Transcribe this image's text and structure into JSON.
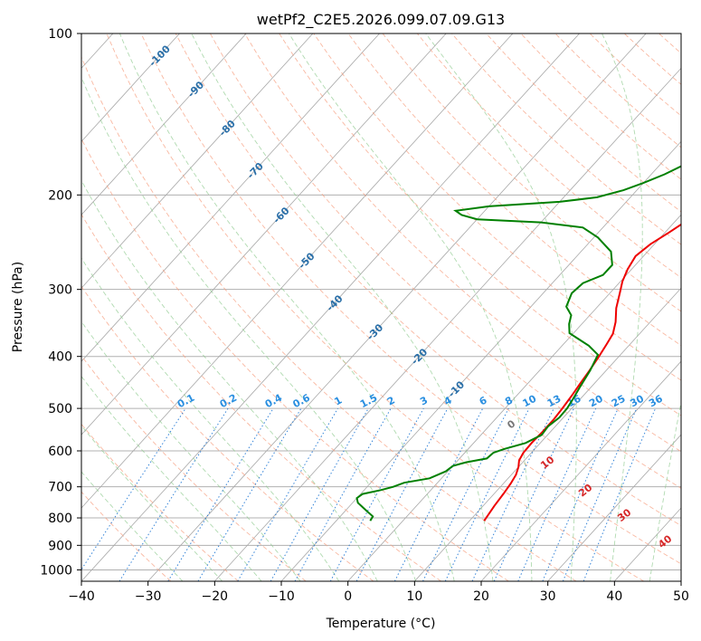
{
  "chart_data": {
    "type": "line",
    "title": "wetPf2_C2E5.2026.099.07.09.G13",
    "xlabel": "Temperature (°C)",
    "ylabel": "Pressure (hPa)",
    "xlim": [
      -40,
      50
    ],
    "ylim": [
      1050,
      100
    ],
    "y_scale": "log",
    "grid": true,
    "x_ticks": [
      -40,
      -30,
      -20,
      -10,
      0,
      10,
      20,
      30,
      40,
      50
    ],
    "x_tick_labels": [
      "−40",
      "−30",
      "−20",
      "−10",
      "0",
      "10",
      "20",
      "30",
      "40",
      "50"
    ],
    "y_ticks": [
      100,
      200,
      300,
      400,
      500,
      600,
      700,
      800,
      900,
      1000
    ],
    "y_tick_labels": [
      "100",
      "200",
      "300",
      "400",
      "500",
      "600",
      "700",
      "800",
      "900",
      "1000"
    ],
    "series": [
      {
        "color": "#ee0000",
        "points": [
          [
            12.2,
            810
          ],
          [
            11.7,
            760
          ],
          [
            11.4,
            720
          ],
          [
            11.1,
            690
          ],
          [
            10.7,
            665
          ],
          [
            10.0,
            643
          ],
          [
            9.2,
            625
          ],
          [
            8.8,
            605
          ],
          [
            8.7,
            580
          ],
          [
            8.8,
            555
          ],
          [
            8.8,
            525
          ],
          [
            8.6,
            500
          ],
          [
            8.3,
            475
          ],
          [
            7.9,
            450
          ],
          [
            7.5,
            425
          ],
          [
            7.0,
            400
          ],
          [
            6.5,
            380
          ],
          [
            6.0,
            363
          ],
          [
            4.8,
            345
          ],
          [
            3.0,
            325
          ],
          [
            1.5,
            305
          ],
          [
            0.3,
            290
          ],
          [
            -0.6,
            275
          ],
          [
            -1.2,
            260
          ],
          [
            -0.6,
            247
          ],
          [
            0.6,
            235
          ],
          [
            1.8,
            222
          ],
          [
            2.6,
            210
          ],
          [
            3.4,
            198
          ],
          [
            4.0,
            186
          ],
          [
            4.8,
            174
          ],
          [
            5.4,
            162
          ],
          [
            5.9,
            152
          ],
          [
            6.6,
            143
          ],
          [
            8.2,
            135
          ],
          [
            10.6,
            128
          ],
          [
            12.7,
            120
          ],
          [
            14.6,
            110
          ],
          [
            17.2,
            100
          ]
        ]
      },
      {
        "color": "#008000",
        "points": [
          [
            -4.9,
            810
          ],
          [
            -5.1,
            795
          ],
          [
            -6.9,
            775
          ],
          [
            -9.2,
            750
          ],
          [
            -10.0,
            735
          ],
          [
            -9.7,
            722
          ],
          [
            -7.5,
            710
          ],
          [
            -6.1,
            700
          ],
          [
            -5.0,
            688
          ],
          [
            -1.8,
            675
          ],
          [
            -0.3,
            655
          ],
          [
            0.0,
            640
          ],
          [
            1.5,
            630
          ],
          [
            4.1,
            620
          ],
          [
            4.3,
            605
          ],
          [
            5.4,
            595
          ],
          [
            7.8,
            580
          ],
          [
            9.1,
            560
          ],
          [
            8.9,
            540
          ],
          [
            9.4,
            520
          ],
          [
            9.3,
            500
          ],
          [
            8.9,
            480
          ],
          [
            8.3,
            455
          ],
          [
            7.6,
            425
          ],
          [
            6.6,
            397
          ],
          [
            4.0,
            382
          ],
          [
            -0.6,
            362
          ],
          [
            -1.9,
            348
          ],
          [
            -2.8,
            335
          ],
          [
            -4.7,
            323
          ],
          [
            -5.7,
            305
          ],
          [
            -5.4,
            292
          ],
          [
            -3.5,
            282
          ],
          [
            -3.5,
            270
          ],
          [
            -5.5,
            255
          ],
          [
            -9.4,
            240
          ],
          [
            -13.0,
            230
          ],
          [
            -20.0,
            225
          ],
          [
            -30.0,
            222
          ],
          [
            -32.9,
            218
          ],
          [
            -34.4,
            214
          ],
          [
            -30.0,
            210
          ],
          [
            -20.0,
            206
          ],
          [
            -15.0,
            202
          ],
          [
            -12.0,
            196
          ],
          [
            -10.0,
            190
          ],
          [
            -8.0,
            183
          ],
          [
            -5.5,
            172
          ],
          [
            -3.8,
            162
          ],
          [
            -3.7,
            155
          ],
          [
            -4.4,
            146
          ],
          [
            -5.1,
            138
          ],
          [
            -5.2,
            128
          ],
          [
            -4.9,
            118
          ],
          [
            -3.8,
            110
          ],
          [
            -1.8,
            104
          ],
          [
            0.0,
            100
          ]
        ]
      }
    ],
    "isotherm_labels": [
      "-100",
      "-90",
      "-80",
      "-70",
      "-60",
      "-50",
      "-40",
      "-30",
      "-20",
      "-10"
    ],
    "mixing_ratio_labels": [
      "0.1",
      "0.2",
      "0.4",
      "0.6",
      "1",
      "1.5",
      "2",
      "3",
      "4",
      "6",
      "8",
      "10",
      "13",
      "16",
      "20",
      "25",
      "30",
      "36"
    ],
    "dry_adiabat_labels": [
      "0",
      "10",
      "20",
      "30",
      "40"
    ]
  }
}
